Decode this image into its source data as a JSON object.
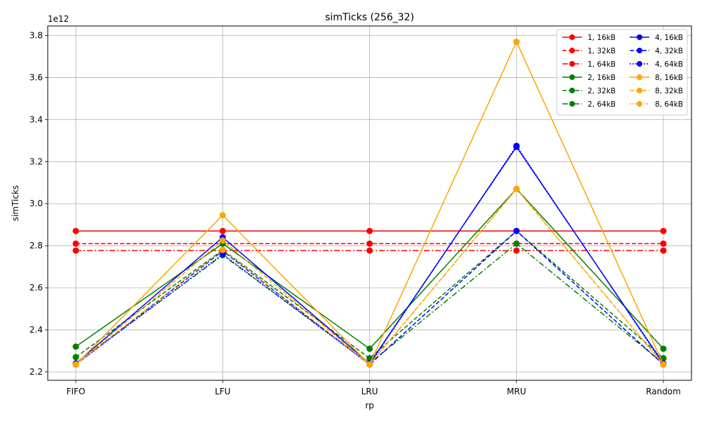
{
  "chart_data": {
    "type": "line",
    "title": "simTicks (256_32)",
    "xlabel": "rp",
    "ylabel": "simTicks",
    "y_offset_label": "1e12",
    "categories": [
      "FIFO",
      "LFU",
      "LRU",
      "MRU",
      "Random"
    ],
    "ylim": [
      2.16,
      3.845
    ],
    "yticks": [
      2.2,
      2.4,
      2.6,
      2.8,
      3.0,
      3.2,
      3.4,
      3.6,
      3.8
    ],
    "ytick_labels": [
      "2.2",
      "2.4",
      "2.6",
      "2.8",
      "3.0",
      "3.2",
      "3.4",
      "3.6",
      "3.8"
    ],
    "grid": true,
    "legend_position": "top-right",
    "legend_columns": 2,
    "series": [
      {
        "name": "1, 16kB",
        "color": "#ff0000",
        "dash": "solid",
        "values": [
          2.87,
          2.87,
          2.87,
          2.87,
          2.87
        ]
      },
      {
        "name": "1, 32kB",
        "color": "#ff0000",
        "dash": "dashed",
        "values": [
          2.81,
          2.81,
          2.81,
          2.81,
          2.81
        ]
      },
      {
        "name": "1, 64kB",
        "color": "#ff0000",
        "dash": "dashdot",
        "values": [
          2.777,
          2.777,
          2.777,
          2.777,
          2.777
        ]
      },
      {
        "name": "2, 16kB",
        "color": "#008000",
        "dash": "solid",
        "values": [
          2.32,
          2.81,
          2.31,
          3.07,
          2.31
        ]
      },
      {
        "name": "2, 32kB",
        "color": "#008000",
        "dash": "dashed",
        "values": [
          2.27,
          2.78,
          2.265,
          2.87,
          2.265
        ]
      },
      {
        "name": "2, 64kB",
        "color": "#008000",
        "dash": "dashdot",
        "values": [
          2.24,
          2.755,
          2.24,
          2.81,
          2.24
        ]
      },
      {
        "name": "4, 16kB",
        "color": "#0000ff",
        "dash": "solid",
        "values": [
          2.24,
          2.84,
          2.24,
          3.27,
          2.24
        ]
      },
      {
        "name": "4, 32kB",
        "color": "#0000ff",
        "dash": "dashed",
        "values": [
          2.235,
          2.775,
          2.235,
          2.87,
          2.235
        ]
      },
      {
        "name": "4, 64kB",
        "color": "#0000ff",
        "dash": "dotted",
        "values": [
          2.235,
          2.76,
          2.235,
          3.275,
          2.235
        ]
      },
      {
        "name": "8, 16kB",
        "color": "#ffa500",
        "dash": "solid",
        "values": [
          2.235,
          2.945,
          2.235,
          3.77,
          2.235
        ]
      },
      {
        "name": "8, 32kB",
        "color": "#ffa500",
        "dash": "dashed",
        "values": [
          2.235,
          2.825,
          2.235,
          3.07,
          2.235
        ]
      },
      {
        "name": "8, 64kB",
        "color": "#ffa500",
        "dash": "dotted",
        "values": [
          2.235,
          2.78,
          2.235,
          3.07,
          2.235
        ]
      }
    ]
  }
}
